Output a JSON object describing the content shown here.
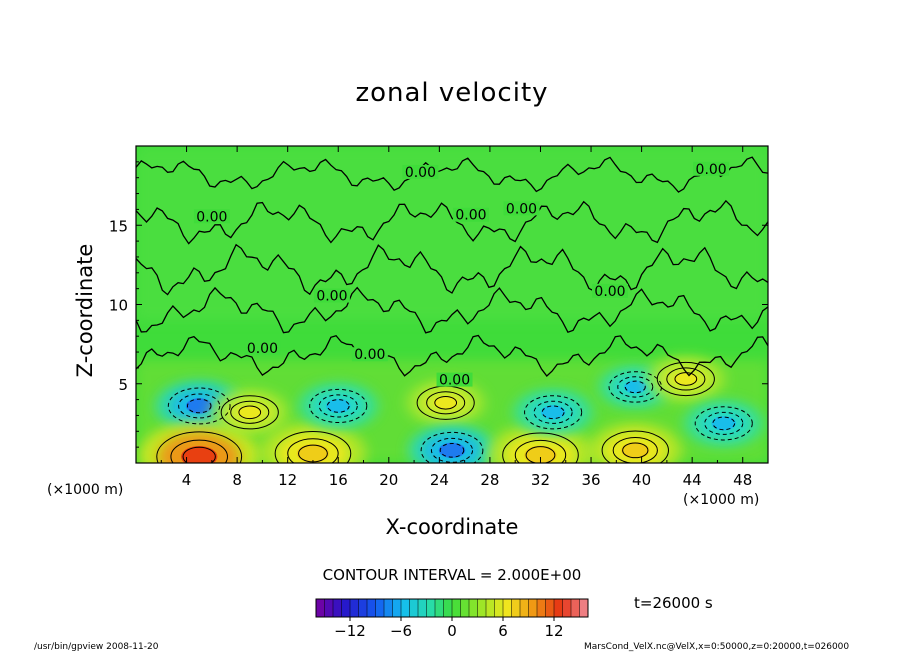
{
  "chart_data": {
    "type": "heatmap",
    "title": "zonal velocity",
    "xlabel": "X-coordinate",
    "ylabel": "Z-coordinate",
    "x_unit_label": "(×1000 m)",
    "xticks": [
      4,
      8,
      12,
      16,
      20,
      24,
      28,
      32,
      36,
      40,
      44,
      48
    ],
    "yticks": [
      5,
      10,
      15
    ],
    "xlim": [
      0,
      50
    ],
    "ylim": [
      0,
      20
    ],
    "contour_interval_text": "CONTOUR INTERVAL = 2.000E+00",
    "contour_labels": [
      "0.00",
      "0.00",
      "0.00",
      "0.00",
      "0.00",
      "0.00",
      "0.00",
      "0.00",
      "0.00",
      "0.00"
    ],
    "colorbar": {
      "min": -16,
      "max": 16,
      "ticks": [
        -12,
        -6,
        0,
        6,
        12
      ],
      "tick_labels": [
        "−12",
        "−6",
        "0",
        "6",
        "12"
      ]
    },
    "field_features": [
      {
        "x": 5,
        "z": 3.6,
        "value": -7
      },
      {
        "x": 5,
        "z": 0.4,
        "value": 12
      },
      {
        "x": 9,
        "z": 3.2,
        "value": 6
      },
      {
        "x": 14,
        "z": 0.6,
        "value": 10
      },
      {
        "x": 16,
        "z": 3.6,
        "value": -6
      },
      {
        "x": 24.5,
        "z": 3.8,
        "value": 6
      },
      {
        "x": 25,
        "z": 0.8,
        "value": -7
      },
      {
        "x": 32,
        "z": 0.5,
        "value": 10
      },
      {
        "x": 33,
        "z": 3.2,
        "value": -6
      },
      {
        "x": 39.5,
        "z": 4.8,
        "value": -5
      },
      {
        "x": 39.5,
        "z": 0.8,
        "value": 8
      },
      {
        "x": 43.5,
        "z": 5.3,
        "value": 6
      },
      {
        "x": 46.5,
        "z": 2.5,
        "value": -6
      }
    ],
    "colors": {
      "background_field": "#3fdc3a",
      "negative": "#1ec8e8",
      "positive": "#f0e81c"
    }
  },
  "annotations": {
    "time": "t=26000 s",
    "footer_left": "/usr/bin/gpview   2008-11-20",
    "footer_right": "MarsCond_VelX.nc@VelX,x=0:50000,z=0:20000,t=026000"
  }
}
